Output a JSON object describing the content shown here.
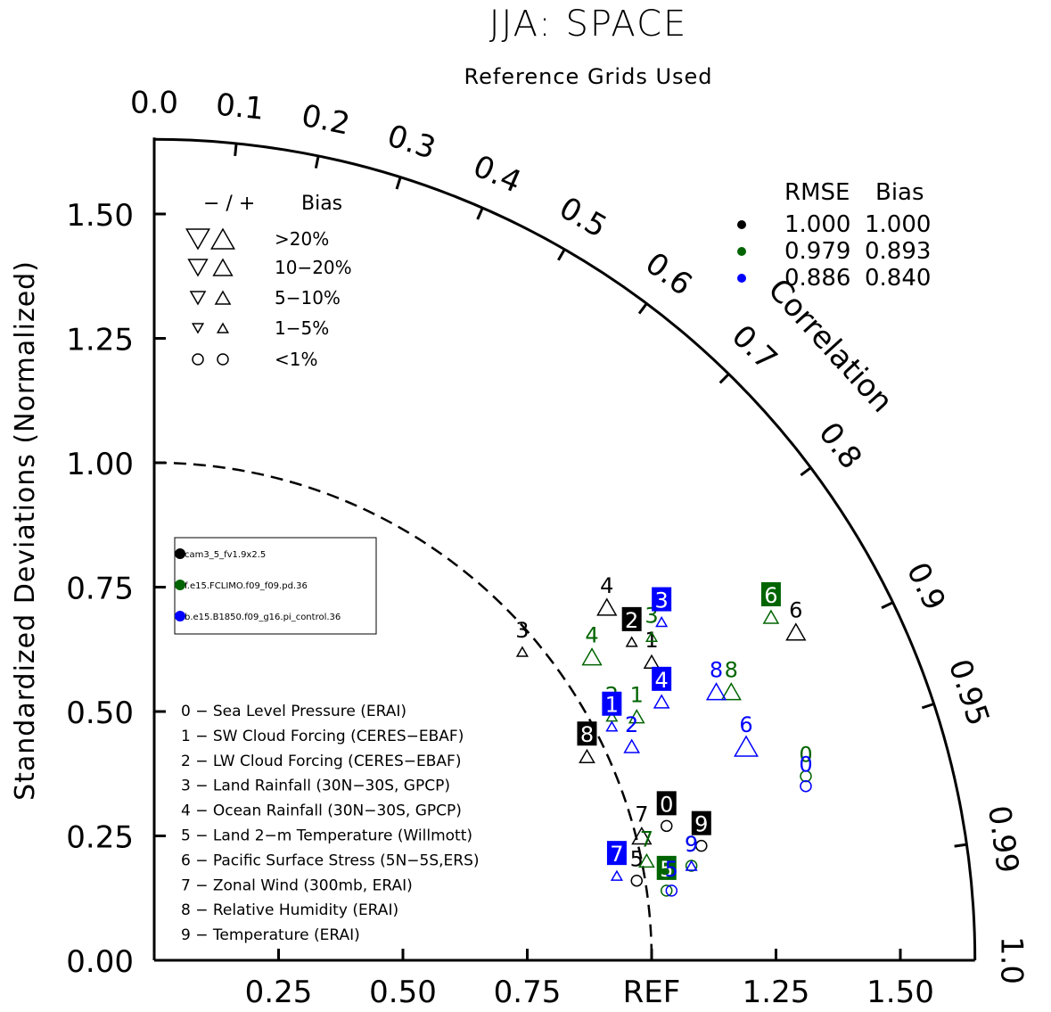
{
  "chart_data": {
    "type": "scatter",
    "subtype": "taylor-diagram",
    "title": "JJA: SPACE",
    "subtitle": "Reference Grids Used",
    "ylabel": "Standardized Deviations (Normalized)",
    "correlation_label": "Correlation",
    "ref_label": "REF",
    "std_range": [
      0,
      1.65
    ],
    "y_ticks": [
      "0.00",
      "0.25",
      "0.50",
      "0.75",
      "1.00",
      "1.25",
      "1.50"
    ],
    "x_ticks": [
      "0.25",
      "0.50",
      "0.75",
      "1.25",
      "1.50"
    ],
    "corr_ticks": [
      {
        "r": 0.0,
        "label": "0.0"
      },
      {
        "r": 0.1,
        "label": "0.1"
      },
      {
        "r": 0.2,
        "label": "0.2"
      },
      {
        "r": 0.3,
        "label": "0.3"
      },
      {
        "r": 0.4,
        "label": "0.4"
      },
      {
        "r": 0.5,
        "label": "0.5"
      },
      {
        "r": 0.6,
        "label": "0.6"
      },
      {
        "r": 0.7,
        "label": "0.7"
      },
      {
        "r": 0.8,
        "label": "0.8"
      },
      {
        "r": 0.9,
        "label": "0.9"
      },
      {
        "r": 0.95,
        "label": "0.95"
      },
      {
        "r": 0.99,
        "label": "0.99"
      },
      {
        "r": 1.0,
        "label": "1.0"
      }
    ],
    "bias_legend": {
      "header_sign": "−  /  +",
      "header_bias": "Bias",
      "rows": [
        {
          "label": ">20%",
          "shape": "triangle",
          "size": 4
        },
        {
          "label": "10−20%",
          "shape": "triangle",
          "size": 3
        },
        {
          "label": "5−10%",
          "shape": "triangle",
          "size": 2
        },
        {
          "label": "1−5%",
          "shape": "triangle",
          "size": 1
        },
        {
          "label": "<1%",
          "shape": "circle",
          "size": 1
        }
      ]
    },
    "rmse_table": {
      "header_rmse": "RMSE",
      "header_bias": "Bias",
      "rows": [
        {
          "color": "#000000",
          "rmse": "1.000",
          "bias": "1.000"
        },
        {
          "color": "#006400",
          "rmse": "0.979",
          "bias": "0.893"
        },
        {
          "color": "#0000ff",
          "rmse": "0.886",
          "bias": "0.840"
        }
      ]
    },
    "series": [
      {
        "name": "cam3_5_fv1.9x2.5",
        "color": "#000000",
        "points": [
          {
            "id": "0",
            "x": 1.03,
            "y": 0.27,
            "shape": "circle",
            "size": 1,
            "boxed": true
          },
          {
            "id": "1",
            "x": 1.0,
            "y": 0.6,
            "shape": "triangle",
            "size": 2,
            "boxed": false
          },
          {
            "id": "2",
            "x": 0.96,
            "y": 0.64,
            "shape": "triangle",
            "size": 1,
            "boxed": true
          },
          {
            "id": "3",
            "x": 0.74,
            "y": 0.62,
            "shape": "triangle",
            "size": 1,
            "boxed": false
          },
          {
            "id": "4",
            "x": 0.91,
            "y": 0.71,
            "shape": "triangle",
            "size": 3,
            "boxed": false
          },
          {
            "id": "5",
            "x": 0.97,
            "y": 0.16,
            "shape": "circle",
            "size": 1,
            "boxed": false
          },
          {
            "id": "6",
            "x": 1.29,
            "y": 0.66,
            "shape": "triangle",
            "size": 3,
            "boxed": false
          },
          {
            "id": "7",
            "x": 0.98,
            "y": 0.25,
            "shape": "triangle",
            "size": 3,
            "boxed": false
          },
          {
            "id": "8",
            "x": 0.87,
            "y": 0.41,
            "shape": "triangle",
            "size": 2,
            "boxed": true
          },
          {
            "id": "9",
            "x": 1.1,
            "y": 0.23,
            "shape": "circle",
            "size": 1,
            "boxed": true
          }
        ]
      },
      {
        "name": "f.e15.FCLIMO.f09_f09.pd.36",
        "color": "#006400",
        "points": [
          {
            "id": "0",
            "x": 1.31,
            "y": 0.37,
            "shape": "circle",
            "size": 1,
            "boxed": false
          },
          {
            "id": "1",
            "x": 0.97,
            "y": 0.49,
            "shape": "triangle",
            "size": 2,
            "boxed": false
          },
          {
            "id": "2",
            "x": 0.92,
            "y": 0.49,
            "shape": "triangle",
            "size": 1,
            "boxed": false
          },
          {
            "id": "3",
            "x": 1.0,
            "y": 0.65,
            "shape": "triangle",
            "size": 1,
            "boxed": false
          },
          {
            "id": "4",
            "x": 0.88,
            "y": 0.61,
            "shape": "triangle",
            "size": 3,
            "boxed": false
          },
          {
            "id": "5",
            "x": 1.03,
            "y": 0.14,
            "shape": "circle",
            "size": 1,
            "boxed": true
          },
          {
            "id": "6",
            "x": 1.24,
            "y": 0.69,
            "shape": "triangle",
            "size": 2,
            "boxed": true
          },
          {
            "id": "7",
            "x": 0.99,
            "y": 0.2,
            "shape": "triangle",
            "size": 2,
            "boxed": false
          },
          {
            "id": "8",
            "x": 1.16,
            "y": 0.54,
            "shape": "triangle",
            "size": 3,
            "boxed": false
          },
          {
            "id": "9",
            "x": 1.08,
            "y": 0.19,
            "shape": "circle",
            "size": 1,
            "boxed": false
          }
        ]
      },
      {
        "name": "b.e15.B1850.f09_g16.pi_control.36",
        "color": "#0000ff",
        "points": [
          {
            "id": "0",
            "x": 1.31,
            "y": 0.35,
            "shape": "circle",
            "size": 1,
            "boxed": false
          },
          {
            "id": "1",
            "x": 0.92,
            "y": 0.47,
            "shape": "triangle",
            "size": 1,
            "boxed": true
          },
          {
            "id": "2",
            "x": 0.96,
            "y": 0.43,
            "shape": "triangle",
            "size": 2,
            "boxed": false
          },
          {
            "id": "3",
            "x": 1.02,
            "y": 0.68,
            "shape": "triangle",
            "size": 1,
            "boxed": true
          },
          {
            "id": "4",
            "x": 1.02,
            "y": 0.52,
            "shape": "triangle",
            "size": 2,
            "boxed": true
          },
          {
            "id": "5",
            "x": 1.04,
            "y": 0.14,
            "shape": "circle",
            "size": 1,
            "boxed": false
          },
          {
            "id": "6",
            "x": 1.19,
            "y": 0.43,
            "shape": "triangle",
            "size": 4,
            "boxed": false
          },
          {
            "id": "7",
            "x": 0.93,
            "y": 0.17,
            "shape": "triangle",
            "size": 1,
            "boxed": true
          },
          {
            "id": "8",
            "x": 1.13,
            "y": 0.54,
            "shape": "triangle",
            "size": 3,
            "boxed": false
          },
          {
            "id": "9",
            "x": 1.08,
            "y": 0.19,
            "shape": "triangle",
            "size": 1,
            "boxed": false
          }
        ]
      }
    ],
    "variables": [
      {
        "id": "0",
        "label": "0 − Sea Level Pressure (ERAI)"
      },
      {
        "id": "1",
        "label": "1 − SW Cloud Forcing (CERES−EBAF)"
      },
      {
        "id": "2",
        "label": "2 − LW Cloud Forcing (CERES−EBAF)"
      },
      {
        "id": "3",
        "label": "3 − Land Rainfall (30N−30S, GPCP)"
      },
      {
        "id": "4",
        "label": "4 − Ocean Rainfall (30N−30S, GPCP)"
      },
      {
        "id": "5",
        "label": "5 − Land 2−m Temperature (Willmott)"
      },
      {
        "id": "6",
        "label": "6 − Pacific Surface Stress (5N−5S,ERS)"
      },
      {
        "id": "7",
        "label": "7 − Zonal Wind (300mb, ERAI)"
      },
      {
        "id": "8",
        "label": "8 − Relative Humidity (ERAI)"
      },
      {
        "id": "9",
        "label": "9 − Temperature (ERAI)"
      }
    ]
  }
}
